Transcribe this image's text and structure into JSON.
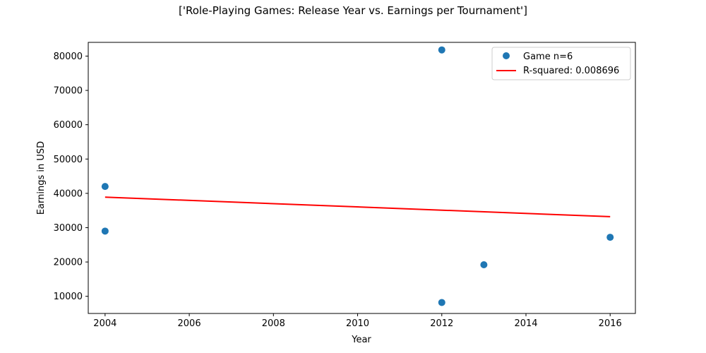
{
  "chart_data": {
    "type": "scatter",
    "title": "['Role-Playing Games: Release Year vs. Earnings per Tournament']",
    "xlabel": "Year",
    "ylabel": "Earnings in USD",
    "xlim": [
      2003.6,
      2016.6
    ],
    "ylim": [
      5000,
      84000
    ],
    "xticks": [
      2004,
      2006,
      2008,
      2010,
      2012,
      2014,
      2016
    ],
    "yticks": [
      10000,
      20000,
      30000,
      40000,
      50000,
      60000,
      70000,
      80000
    ],
    "grid": false,
    "legend_position": "top-right",
    "series": [
      {
        "name": "Game n=6",
        "kind": "scatter",
        "color": "#1f77b4",
        "points": [
          {
            "x": 2004,
            "y": 42000
          },
          {
            "x": 2004,
            "y": 29000
          },
          {
            "x": 2012,
            "y": 81800
          },
          {
            "x": 2012,
            "y": 8200
          },
          {
            "x": 2013,
            "y": 19200
          },
          {
            "x": 2016,
            "y": 27200
          }
        ]
      },
      {
        "name": "R-squared: 0.008696",
        "kind": "line",
        "color": "#ff0000",
        "points": [
          {
            "x": 2004,
            "y": 38900
          },
          {
            "x": 2016,
            "y": 33200
          }
        ]
      }
    ]
  }
}
